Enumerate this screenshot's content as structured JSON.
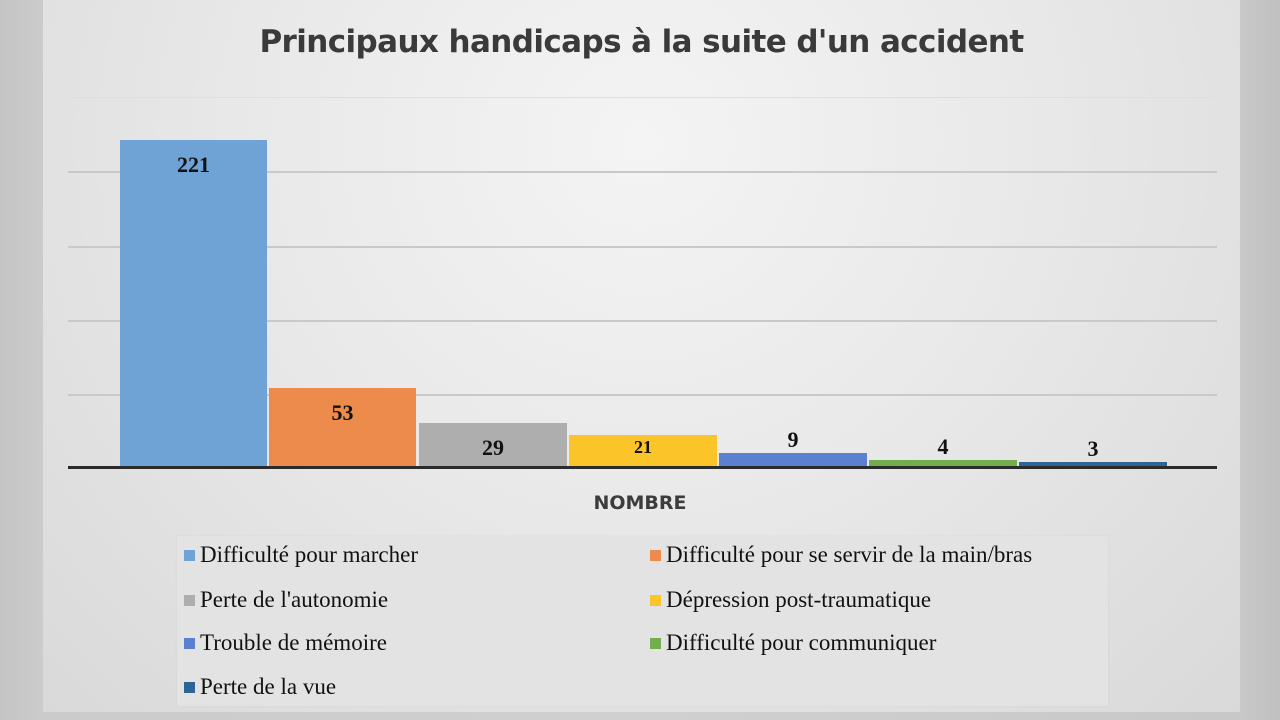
{
  "chart_data": {
    "type": "bar",
    "title": "Principaux handicaps à la suite d'un accident",
    "xlabel": "NOMBRE",
    "ylabel": "",
    "ylim": [
      0,
      250
    ],
    "y_gridlines": [
      0,
      50,
      100,
      150,
      200,
      250
    ],
    "grid": true,
    "legend_position": "bottom",
    "categories": [
      "NOMBRE"
    ],
    "series": [
      {
        "name": "Difficulté pour marcher",
        "values": [
          221
        ],
        "color": "#6fa3d6"
      },
      {
        "name": "Difficulté pour se servir de la main/bras",
        "values": [
          53
        ],
        "color": "#ec8b4b"
      },
      {
        "name": "Perte de l'autonomie",
        "values": [
          29
        ],
        "color": "#aeaeae"
      },
      {
        "name": "Dépression post-traumatique",
        "values": [
          21
        ],
        "color": "#fbc429"
      },
      {
        "name": "Trouble de mémoire",
        "values": [
          9
        ],
        "color": "#5b80cf"
      },
      {
        "name": "Difficulté pour communiquer",
        "values": [
          4
        ],
        "color": "#72ad4f"
      },
      {
        "name": "Perte de la vue",
        "values": [
          3
        ],
        "color": "#2f6496"
      }
    ],
    "data_labels": [
      "221",
      "53",
      "29",
      "21",
      "9",
      "4",
      "3"
    ]
  }
}
